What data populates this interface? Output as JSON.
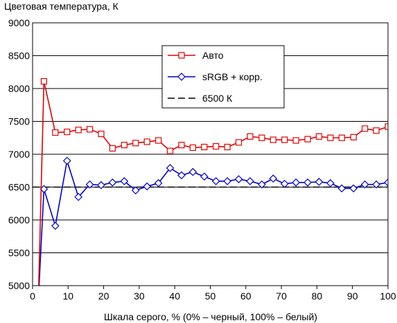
{
  "chart_data": {
    "type": "line",
    "title": "",
    "ylabel": "Цветовая температура, К",
    "xlabel": "Шкала серого, % (0% – черный, 100% – белый)",
    "xlim": [
      0,
      100
    ],
    "ylim": [
      5000,
      9000
    ],
    "xticks": [
      0,
      10,
      20,
      30,
      40,
      50,
      60,
      70,
      80,
      90,
      100
    ],
    "yticks": [
      5000,
      5500,
      6000,
      6500,
      7000,
      7500,
      8000,
      8500,
      9000
    ],
    "grid": "horizontal",
    "legend_position": "top-center",
    "series": [
      {
        "name": "Авто",
        "color": "#e00000",
        "marker": "square",
        "line": "solid",
        "x": [
          1.6,
          3.2,
          6.4,
          9.7,
          12.9,
          16.1,
          19.3,
          22.5,
          25.8,
          29.0,
          32.2,
          35.4,
          38.7,
          41.9,
          45.1,
          48.3,
          51.6,
          54.8,
          58.0,
          61.2,
          64.5,
          67.7,
          70.9,
          74.1,
          77.4,
          80.6,
          83.8,
          87.0,
          90.3,
          93.5,
          96.7,
          100.0
        ],
        "y": [
          4750,
          8110,
          7330,
          7340,
          7370,
          7380,
          7310,
          7090,
          7140,
          7170,
          7190,
          7210,
          7050,
          7140,
          7100,
          7110,
          7120,
          7110,
          7180,
          7270,
          7250,
          7220,
          7220,
          7210,
          7230,
          7270,
          7250,
          7250,
          7260,
          7390,
          7360,
          7420
        ]
      },
      {
        "name": "sRGB + корр.",
        "color": "#0000cc",
        "marker": "diamond",
        "line": "solid",
        "x": [
          1.6,
          3.2,
          6.4,
          9.7,
          12.9,
          16.1,
          19.3,
          22.5,
          25.8,
          29.0,
          32.2,
          35.4,
          38.7,
          41.9,
          45.1,
          48.3,
          51.6,
          54.8,
          58.0,
          61.2,
          64.5,
          67.7,
          70.9,
          74.1,
          77.4,
          80.6,
          83.8,
          87.0,
          90.3,
          93.5,
          96.7,
          100.0
        ],
        "y": [
          4750,
          6470,
          5910,
          6900,
          6350,
          6540,
          6530,
          6570,
          6590,
          6450,
          6510,
          6560,
          6790,
          6680,
          6730,
          6660,
          6590,
          6590,
          6620,
          6590,
          6540,
          6630,
          6550,
          6570,
          6570,
          6580,
          6560,
          6480,
          6480,
          6540,
          6540,
          6570
        ]
      },
      {
        "name": "6500 К",
        "color": "#000000",
        "marker": "none",
        "line": "dashed",
        "x": [
          0,
          100
        ],
        "y": [
          6500,
          6500
        ]
      }
    ]
  }
}
